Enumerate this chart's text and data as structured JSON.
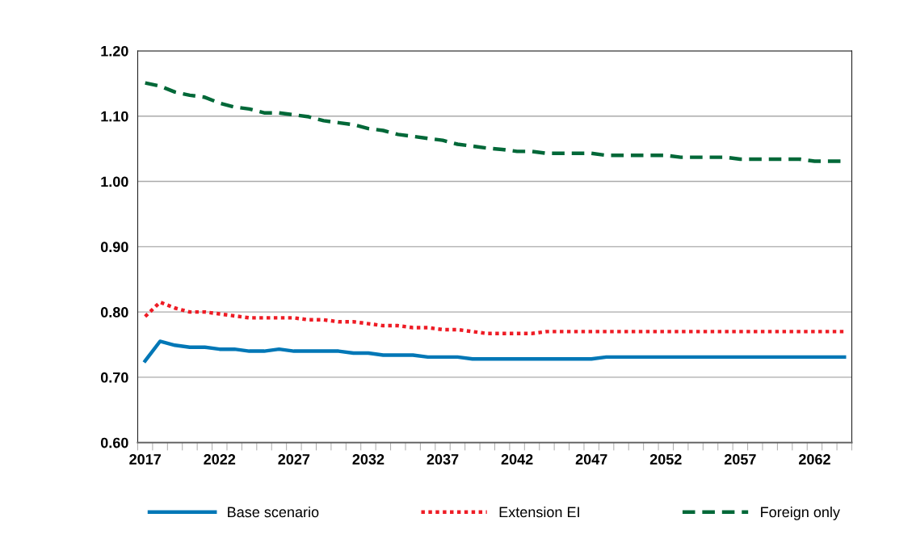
{
  "chart_data": {
    "type": "line",
    "categories": [
      "2017",
      null,
      null,
      null,
      null,
      "2022",
      null,
      null,
      null,
      null,
      "2027",
      null,
      null,
      null,
      null,
      "2032",
      null,
      null,
      null,
      null,
      "2037",
      null,
      null,
      null,
      null,
      "2042",
      null,
      null,
      null,
      null,
      "2047",
      null,
      null,
      null,
      null,
      "2052",
      null,
      null,
      null,
      null,
      "2057",
      null,
      null,
      null,
      null,
      "2062",
      null,
      null
    ],
    "series": [
      {
        "name": "Base scenario",
        "color": "#0077b6",
        "line_style": "solid",
        "values": [
          0.725,
          0.755,
          0.749,
          0.746,
          0.746,
          0.743,
          0.743,
          0.74,
          0.74,
          0.743,
          0.74,
          0.74,
          0.74,
          0.74,
          0.737,
          0.737,
          0.734,
          0.734,
          0.734,
          0.731,
          0.731,
          0.731,
          0.728,
          0.728,
          0.728,
          0.728,
          0.728,
          0.728,
          0.728,
          0.728,
          0.728,
          0.731,
          0.731,
          0.731,
          0.731,
          0.731,
          0.731,
          0.731,
          0.731,
          0.731,
          0.731,
          0.731,
          0.731,
          0.731,
          0.731,
          0.731,
          0.731,
          0.731
        ]
      },
      {
        "name": "Extension EI",
        "color": "#ee1c25",
        "line_style": "dotted",
        "values": [
          0.793,
          0.815,
          0.806,
          0.8,
          0.8,
          0.797,
          0.794,
          0.791,
          0.791,
          0.791,
          0.791,
          0.788,
          0.788,
          0.785,
          0.785,
          0.782,
          0.779,
          0.779,
          0.776,
          0.776,
          0.773,
          0.773,
          0.77,
          0.767,
          0.767,
          0.767,
          0.767,
          0.77,
          0.77,
          0.77,
          0.77,
          0.77,
          0.77,
          0.77,
          0.77,
          0.77,
          0.77,
          0.77,
          0.77,
          0.77,
          0.77,
          0.77,
          0.77,
          0.77,
          0.77,
          0.77,
          0.77,
          0.77
        ]
      },
      {
        "name": "Foreign only",
        "color": "#006838",
        "line_style": "dashed",
        "values": [
          1.151,
          1.146,
          1.137,
          1.132,
          1.129,
          1.12,
          1.114,
          1.111,
          1.105,
          1.105,
          1.102,
          1.099,
          1.093,
          1.09,
          1.087,
          1.081,
          1.078,
          1.072,
          1.069,
          1.066,
          1.063,
          1.057,
          1.054,
          1.051,
          1.049,
          1.046,
          1.046,
          1.043,
          1.043,
          1.043,
          1.043,
          1.04,
          1.04,
          1.04,
          1.04,
          1.04,
          1.037,
          1.037,
          1.037,
          1.037,
          1.034,
          1.034,
          1.034,
          1.034,
          1.034,
          1.031,
          1.031,
          1.031
        ]
      }
    ],
    "ylim": [
      0.6,
      1.2
    ],
    "yticks": [
      {
        "value": 0.6,
        "label": "0.60"
      },
      {
        "value": 0.7,
        "label": "0.70"
      },
      {
        "value": 0.8,
        "label": "0.80"
      },
      {
        "value": 0.9,
        "label": "0.90"
      },
      {
        "value": 1.0,
        "label": "1.00"
      },
      {
        "value": 1.1,
        "label": "1.10"
      },
      {
        "value": 1.2,
        "label": "1.20"
      }
    ],
    "grid": "y",
    "legend": "bottom",
    "marker": "none"
  }
}
